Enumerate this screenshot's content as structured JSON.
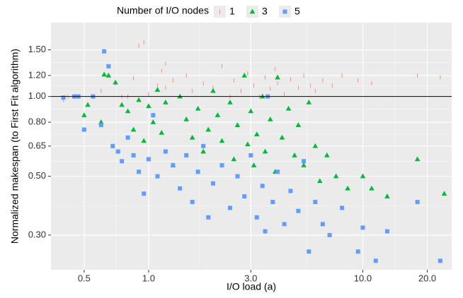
{
  "chart_data": {
    "type": "scatter",
    "legend_title": "Number of I/O nodes",
    "x_label": "I/O load (a)",
    "y_label": "Normalized makespan (to First Fit algorithm)",
    "x_log": true,
    "y_log": true,
    "grid": true,
    "legend_position": "top",
    "hline": 1,
    "xlim": [
      0.35,
      26
    ],
    "ylim": [
      0.222,
      1.9
    ],
    "xticks": [
      0.5,
      {
        "value": 1,
        "label": "1.0"
      },
      {
        "value": 3,
        "label": "3.0"
      },
      {
        "value": 10,
        "label": "10.0"
      },
      {
        "value": 20,
        "label": "20.0"
      }
    ],
    "yticks": [
      {
        "value": 0.3,
        "label": "0.30"
      },
      {
        "value": 0.5,
        "label": "0.50"
      },
      {
        "value": 0.65,
        "label": "0.65"
      },
      {
        "value": 0.8,
        "label": "0.80"
      },
      {
        "value": 1,
        "label": "1.00"
      },
      {
        "value": 1.2,
        "label": "1.20"
      },
      {
        "value": 1.5,
        "label": "1.50"
      }
    ],
    "series": [
      {
        "name": "1",
        "color": "#F8766D",
        "shape": "tick",
        "x": [
          0.4,
          0.42,
          0.6,
          0.7,
          0.8,
          0.85,
          0.9,
          0.95,
          1.0,
          1.1,
          1.15,
          1.2,
          1.3,
          1.4,
          1.5,
          1.6,
          1.8,
          2.0,
          2.2,
          2.4,
          2.5,
          2.7,
          2.9,
          3.1,
          3.3,
          3.5,
          3.7,
          4.0,
          4.3,
          4.6,
          5.0,
          5.3,
          5.7,
          6.0,
          6.5,
          7.2,
          8.0,
          9.5,
          11,
          18,
          23,
          1.2,
          0.75,
          3.9
        ],
        "values": [
          0.97,
          1.0,
          1.05,
          1.12,
          1.0,
          1.17,
          1.55,
          1.6,
          1.02,
          1.1,
          1.25,
          1.08,
          1.15,
          1.0,
          1.2,
          1.05,
          1.12,
          1.08,
          1.3,
          1.0,
          1.15,
          1.05,
          1.22,
          1.1,
          1.0,
          1.18,
          1.07,
          1.12,
          1.02,
          1.16,
          1.08,
          1.2,
          1.1,
          1.05,
          1.15,
          1.1,
          1.2,
          1.15,
          1.12,
          1.2,
          1.18,
          1.33,
          1.0,
          1.27
        ]
      },
      {
        "name": "3",
        "color": "#00BA38",
        "shape": "triangle",
        "x": [
          0.5,
          0.52,
          0.6,
          0.62,
          0.65,
          0.7,
          0.75,
          0.8,
          0.85,
          0.9,
          0.95,
          1.0,
          1.05,
          1.1,
          1.15,
          1.2,
          1.3,
          1.4,
          1.5,
          1.6,
          1.7,
          1.8,
          1.9,
          2.0,
          2.1,
          2.2,
          2.4,
          2.5,
          2.6,
          2.8,
          2.9,
          3.0,
          3.1,
          3.2,
          3.4,
          3.5,
          3.7,
          3.9,
          4.0,
          4.2,
          4.5,
          4.8,
          5.0,
          5.3,
          5.6,
          6.0,
          6.3,
          6.8,
          7.5,
          8.5,
          10,
          11,
          13,
          18,
          24
        ],
        "values": [
          0.85,
          0.93,
          0.8,
          1.21,
          1.2,
          1.13,
          0.93,
          0.88,
          0.75,
          0.97,
          0.68,
          0.92,
          0.8,
          1.06,
          0.73,
          0.95,
          0.55,
          1.0,
          0.82,
          0.7,
          0.9,
          0.62,
          0.75,
          1.05,
          0.85,
          0.68,
          0.95,
          0.58,
          0.78,
          1.2,
          0.66,
          0.88,
          0.55,
          0.72,
          1.0,
          0.62,
          0.82,
          0.52,
          1.18,
          0.7,
          0.9,
          0.6,
          0.78,
          0.55,
          0.95,
          0.65,
          0.48,
          0.6,
          0.5,
          0.45,
          0.5,
          0.45,
          0.42,
          0.58,
          0.43
        ]
      },
      {
        "name": "5",
        "color": "#619CFF",
        "shape": "square",
        "x": [
          0.4,
          0.45,
          0.47,
          0.5,
          0.55,
          0.6,
          0.62,
          0.65,
          0.68,
          0.72,
          0.75,
          0.8,
          0.85,
          0.9,
          0.95,
          1.0,
          1.05,
          1.1,
          1.2,
          1.3,
          1.4,
          1.5,
          1.6,
          1.7,
          1.8,
          1.9,
          2.0,
          2.2,
          2.4,
          2.6,
          2.8,
          3.0,
          3.2,
          3.4,
          3.5,
          3.6,
          3.8,
          4.0,
          4.3,
          4.6,
          5.0,
          5.3,
          5.6,
          6.0,
          6.5,
          7,
          8,
          9.5,
          10,
          11.5,
          13,
          18,
          23
        ],
        "values": [
          0.99,
          1.0,
          1.0,
          0.75,
          1.0,
          0.78,
          1.48,
          1.3,
          0.65,
          0.62,
          0.57,
          0.7,
          0.6,
          0.52,
          0.43,
          0.58,
          0.85,
          0.5,
          0.62,
          0.55,
          0.45,
          0.6,
          0.4,
          0.52,
          0.65,
          0.35,
          0.47,
          0.55,
          0.38,
          0.5,
          0.42,
          0.6,
          0.35,
          0.46,
          0.31,
          1.0,
          0.4,
          0.52,
          0.33,
          0.44,
          0.37,
          0.57,
          0.26,
          0.4,
          0.33,
          0.3,
          0.38,
          0.26,
          0.32,
          0.24,
          0.31,
          0.4,
          0.24
        ]
      }
    ]
  }
}
